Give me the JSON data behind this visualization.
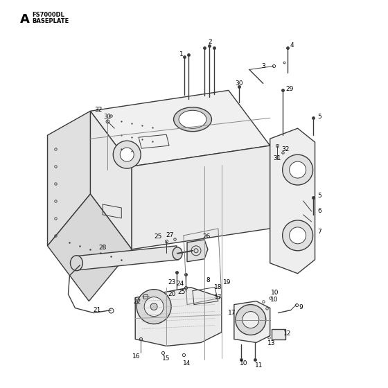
{
  "title_letter": "A",
  "title_model": "FS7000DL",
  "title_sub": "BASEPLATE",
  "bg_color": "#ffffff",
  "line_color": "#3a3a3a",
  "text_color": "#000000",
  "figsize": [
    5.6,
    5.6
  ],
  "dpi": 100
}
